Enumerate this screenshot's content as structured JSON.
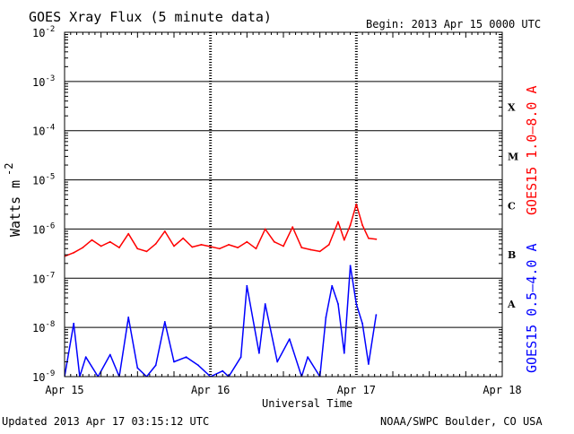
{
  "header": {
    "title": "GOES Xray Flux (5 minute data)",
    "begin": "Begin:  2013 Apr 15 0000 UTC"
  },
  "footer": {
    "updated": "Updated 2013 Apr 17 03:15:12 UTC",
    "credit": "NOAA/SWPC Boulder, CO USA"
  },
  "colors": {
    "long_channel": "#ff0000",
    "short_channel": "#0000ff",
    "axis": "#000000"
  },
  "chart_data": {
    "type": "line",
    "title": "GOES Xray Flux (5 minute data)",
    "xlabel": "Universal Time",
    "ylabel": "Watts m",
    "ylabel_exponent": "-2",
    "y_scale": "log",
    "ylim": [
      1e-09,
      0.01
    ],
    "xlim": [
      "2013-04-15T00:00",
      "2013-04-18T00:00"
    ],
    "x_ticks": [
      "Apr 15",
      "Apr 16",
      "Apr 17",
      "Apr 18"
    ],
    "y_ticks": [
      {
        "base": "10",
        "exp": "-9",
        "value": 1e-09
      },
      {
        "base": "10",
        "exp": "-8",
        "value": 1e-08
      },
      {
        "base": "10",
        "exp": "-7",
        "value": 1e-07
      },
      {
        "base": "10",
        "exp": "-6",
        "value": 1e-06
      },
      {
        "base": "10",
        "exp": "-5",
        "value": 1e-05
      },
      {
        "base": "10",
        "exp": "-4",
        "value": 0.0001
      },
      {
        "base": "10",
        "exp": "-3",
        "value": 0.001
      },
      {
        "base": "10",
        "exp": "-2",
        "value": 0.01
      }
    ],
    "grid": true,
    "flare_classes": [
      {
        "label": "X",
        "value": 0.0003
      },
      {
        "label": "M",
        "value": 3e-05
      },
      {
        "label": "C",
        "value": 3e-06
      },
      {
        "label": "B",
        "value": 3e-07
      },
      {
        "label": "A",
        "value": 3e-08
      }
    ],
    "legend": [
      {
        "label": "GOES15 1.0–8.0 A",
        "color": "#ff0000"
      },
      {
        "label": "GOES15 0.5–4.0 A",
        "color": "#0000ff"
      }
    ],
    "series": [
      {
        "name": "GOES15 1.0–8.0 A",
        "color": "#ff0000",
        "x": [
          "2013-04-15T00:00",
          "2013-04-15T01:30",
          "2013-04-15T03:00",
          "2013-04-15T04:30",
          "2013-04-15T06:00",
          "2013-04-15T07:30",
          "2013-04-15T09:00",
          "2013-04-15T10:30",
          "2013-04-15T12:00",
          "2013-04-15T13:30",
          "2013-04-15T15:00",
          "2013-04-15T16:30",
          "2013-04-15T18:00",
          "2013-04-15T19:30",
          "2013-04-15T21:00",
          "2013-04-15T22:30",
          "2013-04-16T00:00",
          "2013-04-16T01:30",
          "2013-04-16T03:00",
          "2013-04-16T04:30",
          "2013-04-16T06:00",
          "2013-04-16T07:30",
          "2013-04-16T09:00",
          "2013-04-16T10:30",
          "2013-04-16T12:00",
          "2013-04-16T13:30",
          "2013-04-16T15:00",
          "2013-04-16T16:30",
          "2013-04-16T18:00",
          "2013-04-16T19:30",
          "2013-04-16T21:00",
          "2013-04-16T22:00",
          "2013-04-16T23:00",
          "2013-04-17T00:00",
          "2013-04-17T01:00",
          "2013-04-17T02:00",
          "2013-04-17T03:15"
        ],
        "values": [
          2.8e-07,
          3.3e-07,
          4.2e-07,
          6e-07,
          4.5e-07,
          5.5e-07,
          4.2e-07,
          8e-07,
          4e-07,
          3.5e-07,
          5e-07,
          9e-07,
          4.5e-07,
          6.5e-07,
          4.3e-07,
          4.8e-07,
          4.4e-07,
          4e-07,
          4.8e-07,
          4.2e-07,
          5.5e-07,
          4e-07,
          1e-06,
          5.5e-07,
          4.5e-07,
          1.1e-06,
          4.2e-07,
          3.8e-07,
          3.5e-07,
          4.8e-07,
          1.4e-06,
          6e-07,
          1.2e-06,
          3.2e-06,
          1.2e-06,
          6.5e-07,
          6.2e-07
        ]
      },
      {
        "name": "GOES15 0.5–4.0 A",
        "color": "#0000ff",
        "x": [
          "2013-04-15T00:00",
          "2013-04-15T01:30",
          "2013-04-15T02:30",
          "2013-04-15T03:30",
          "2013-04-15T05:30",
          "2013-04-15T07:30",
          "2013-04-15T09:00",
          "2013-04-15T10:30",
          "2013-04-15T12:00",
          "2013-04-15T13:30",
          "2013-04-15T15:00",
          "2013-04-15T16:30",
          "2013-04-15T18:00",
          "2013-04-15T20:00",
          "2013-04-15T22:00",
          "2013-04-16T00:00",
          "2013-04-16T02:00",
          "2013-04-16T03:00",
          "2013-04-16T05:00",
          "2013-04-16T06:00",
          "2013-04-16T08:00",
          "2013-04-16T09:00",
          "2013-04-16T11:00",
          "2013-04-16T13:00",
          "2013-04-16T15:00",
          "2013-04-16T16:00",
          "2013-04-16T18:00",
          "2013-04-16T19:00",
          "2013-04-16T20:00",
          "2013-04-16T21:00",
          "2013-04-16T22:00",
          "2013-04-16T23:00",
          "2013-04-17T00:00",
          "2013-04-17T01:00",
          "2013-04-17T02:00",
          "2013-04-17T03:15"
        ],
        "values": [
          1e-09,
          1.2e-08,
          1e-09,
          2.5e-09,
          1e-09,
          2.8e-09,
          1e-09,
          1.6e-08,
          1.5e-09,
          1e-09,
          1.7e-09,
          1.3e-08,
          2e-09,
          2.5e-09,
          1.7e-09,
          1e-09,
          1.3e-09,
          1e-09,
          2.5e-09,
          7e-08,
          3e-09,
          3e-08,
          2e-09,
          5.8e-09,
          1e-09,
          2.5e-09,
          1e-09,
          1.6e-08,
          7e-08,
          3e-08,
          3e-09,
          1.8e-07,
          3e-08,
          1.2e-08,
          1.8e-09,
          1.8e-08
        ]
      }
    ]
  }
}
